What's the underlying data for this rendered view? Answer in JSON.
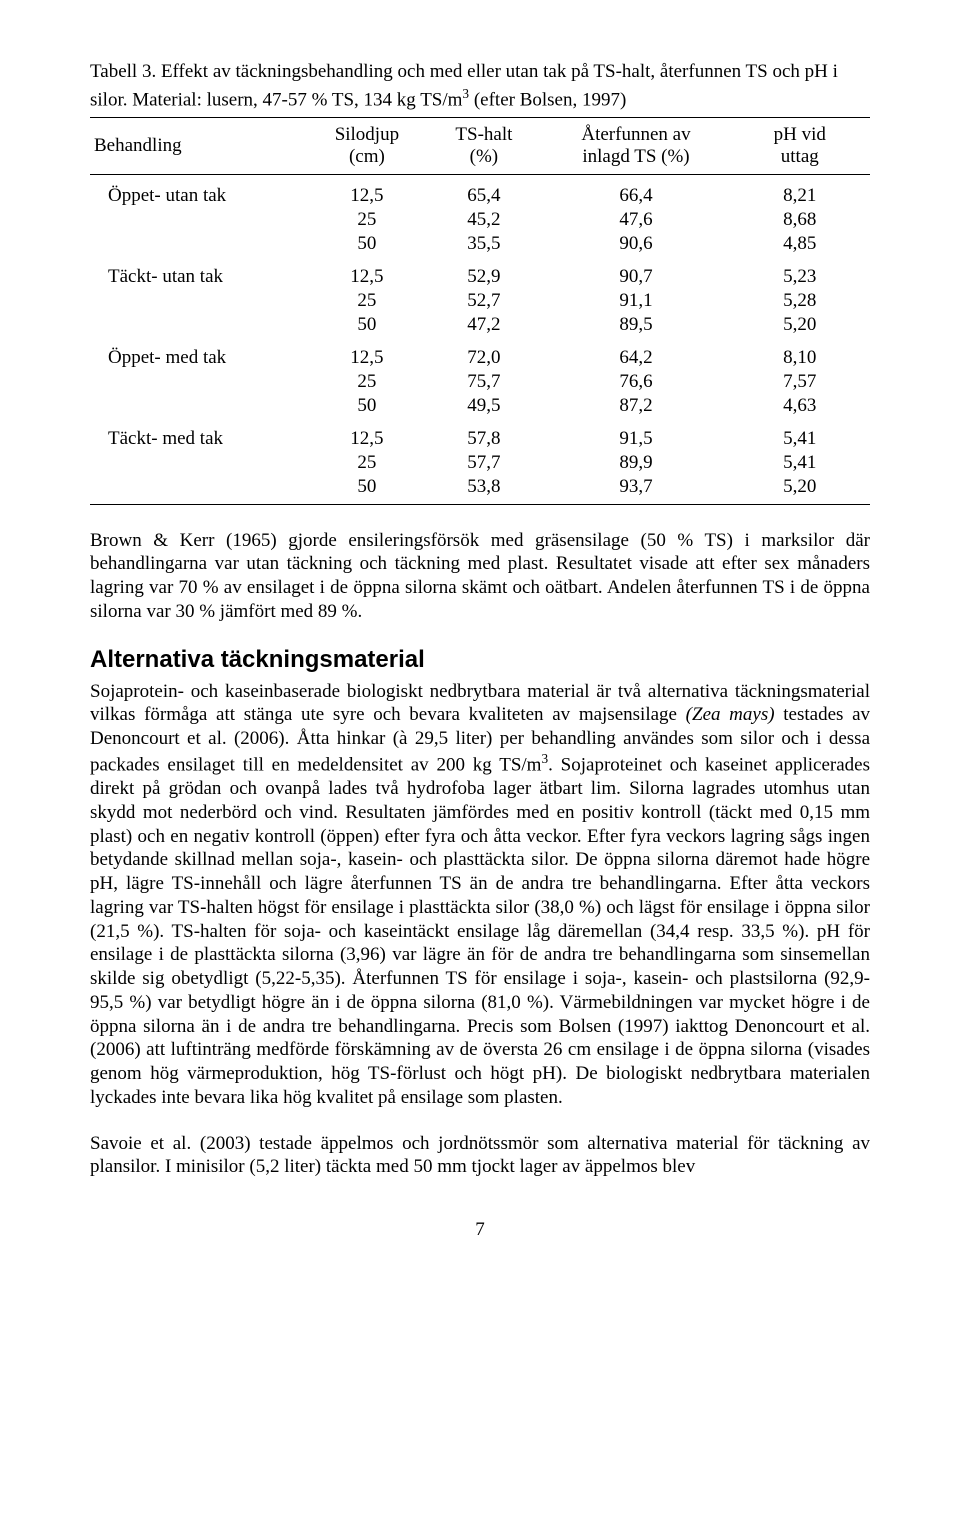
{
  "table": {
    "caption_line1": "Tabell 3. Effekt av täckningsbehandling och med eller utan tak på TS-halt, återfunnen TS och pH i",
    "caption_line2": "silor. Material: lusern, 47-57 % TS, 134 kg TS/m",
    "caption_sup": "3",
    "caption_tail": " (efter Bolsen, 1997)",
    "columns": {
      "c0": "Behandling",
      "c1a": "Silodjup",
      "c1b": "(cm)",
      "c2a": "TS-halt",
      "c2b": "(%)",
      "c3a": "Återfunnen av",
      "c3b": "inlagd TS (%)",
      "c4a": "pH vid",
      "c4b": "uttag"
    },
    "groups": [
      {
        "label": "Öppet- utan tak",
        "rows": [
          [
            "12,5",
            "65,4",
            "66,4",
            "8,21"
          ],
          [
            "25",
            "45,2",
            "47,6",
            "8,68"
          ],
          [
            "50",
            "35,5",
            "90,6",
            "4,85"
          ]
        ]
      },
      {
        "label": "Täckt- utan tak",
        "rows": [
          [
            "12,5",
            "52,9",
            "90,7",
            "5,23"
          ],
          [
            "25",
            "52,7",
            "91,1",
            "5,28"
          ],
          [
            "50",
            "47,2",
            "89,5",
            "5,20"
          ]
        ]
      },
      {
        "label": "Öppet- med tak",
        "rows": [
          [
            "12,5",
            "72,0",
            "64,2",
            "8,10"
          ],
          [
            "25",
            "75,7",
            "76,6",
            "7,57"
          ],
          [
            "50",
            "49,5",
            "87,2",
            "4,63"
          ]
        ]
      },
      {
        "label": "Täckt- med tak",
        "rows": [
          [
            "12,5",
            "57,8",
            "91,5",
            "5,41"
          ],
          [
            "25",
            "57,7",
            "89,9",
            "5,41"
          ],
          [
            "50",
            "53,8",
            "93,7",
            "5,20"
          ]
        ]
      }
    ]
  },
  "para1": "Brown & Kerr (1965) gjorde ensileringsförsök med gräsensilage (50 % TS) i marksilor där behandlingarna var utan täckning och täckning med plast. Resultatet visade att efter sex månaders lagring var 70 % av ensilaget i de öppna silorna skämt och oätbart. Andelen återfunnen TS i de öppna silorna var 30 % jämfört med 89 %.",
  "heading": "Alternativa täckningsmaterial",
  "para2_a": "Sojaprotein- och kaseinbaserade biologiskt nedbrytbara material är två alternativa täckningsmaterial vilkas förmåga att stänga ute syre och bevara kvaliteten av majsensilage ",
  "para2_ital": "(Zea mays)",
  "para2_b": " testades av Denoncourt et al. (2006). Åtta hinkar (à 29,5 liter) per behandling användes som silor och i dessa packades ensilaget till en medeldensitet av 200 kg TS/m",
  "para2_sup": "3",
  "para2_c": ". Sojaproteinet och kaseinet applicerades direkt på grödan och ovanpå lades två hydrofoba lager ätbart lim. Silorna lagrades utomhus utan skydd mot nederbörd och vind. Resultaten jämfördes med en positiv kontroll (täckt med 0,15 mm plast) och en negativ kontroll (öppen) efter fyra och åtta veckor. Efter fyra veckors lagring sågs ingen betydande skillnad mellan soja-, kasein- och plasttäckta silor. De öppna silorna däremot hade högre pH, lägre TS-innehåll och lägre återfunnen TS än de andra tre behandlingarna. Efter åtta veckors lagring var TS-halten högst för ensilage i plasttäckta silor (38,0 %) och lägst för ensilage i öppna silor (21,5 %). TS-halten för soja- och kaseintäckt ensilage låg däremellan (34,4 resp. 33,5 %). pH för ensilage i de plasttäckta silorna (3,96) var lägre än för de andra tre behandlingarna som sinsemellan skilde sig obetydligt (5,22-5,35). Återfunnen TS för ensilage i soja-, kasein- och plastsilorna (92,9-95,5 %) var betydligt högre än i de öppna silorna (81,0 %). Värmebildningen var mycket högre i de öppna silorna än i de andra tre behandlingarna. Precis som Bolsen (1997) iakttog Denoncourt et al. (2006) att luftinträng medförde förskämning av de översta 26 cm ensilage i de öppna silorna (visades genom hög värmeproduktion, hög TS-förlust och högt pH). De biologiskt nedbrytbara materialen lyckades inte bevara lika hög kvalitet på ensilage som plasten.",
  "para3": "Savoie et al. (2003) testade äppelmos och jordnötssmör som alternativa material för täckning av plansilor. I minisilor (5,2 liter) täckta med 50 mm tjockt lager av äppelmos blev",
  "page_number": "7"
}
